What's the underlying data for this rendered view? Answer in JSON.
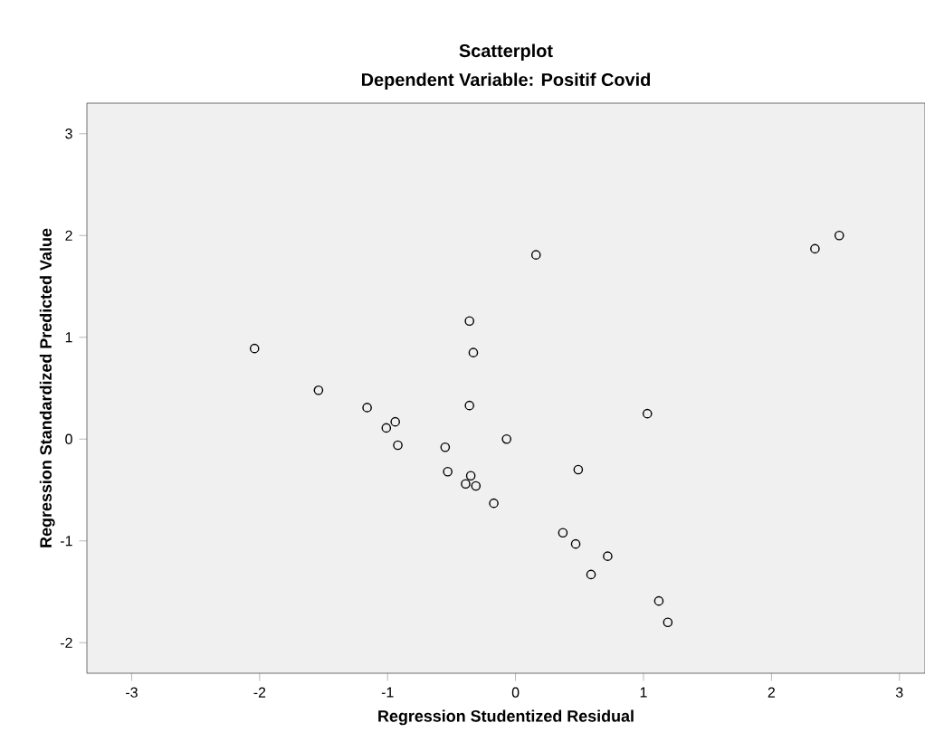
{
  "chart_data": {
    "type": "scatter",
    "title": "Scatterplot",
    "subtitle": "Dependent Variable: Positif Covid",
    "xlabel": "Regression Studentized Residual",
    "ylabel": "Regression Standardized Predicted Value",
    "x": [
      -2.04,
      -1.54,
      -1.16,
      -1.01,
      -0.94,
      -0.92,
      -0.55,
      -0.53,
      -0.39,
      -0.35,
      -0.31,
      -0.17,
      -0.36,
      -0.33,
      -0.36,
      -0.07,
      0.16,
      1.03,
      0.49,
      0.37,
      0.47,
      0.72,
      0.59,
      1.12,
      1.19,
      2.34,
      2.53
    ],
    "values": [
      0.89,
      0.48,
      0.31,
      0.11,
      0.17,
      -0.06,
      -0.08,
      -0.32,
      -0.44,
      -0.36,
      -0.46,
      -0.63,
      1.16,
      0.85,
      0.33,
      0.0,
      1.81,
      0.25,
      -0.3,
      -0.92,
      -1.03,
      -1.15,
      -1.33,
      -1.59,
      -1.8,
      1.87,
      2.0
    ],
    "color": "#000000",
    "marker": "circle",
    "grid": false,
    "xlim": [
      -3.35,
      3.2
    ],
    "ylim": [
      -2.3,
      3.3
    ],
    "xticks": [
      -3,
      -2,
      -1,
      0,
      1,
      2,
      3
    ],
    "yticks": [
      -2,
      -1,
      0,
      1,
      2,
      3
    ]
  }
}
